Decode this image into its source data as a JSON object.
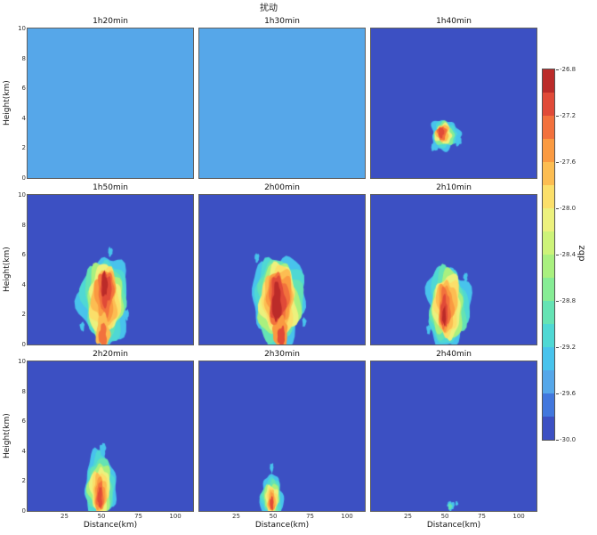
{
  "chart_data": {
    "type": "heatmap",
    "title": "扰动",
    "xlabel": "Distance(km)",
    "ylabel": "Height(km)",
    "xlim": [
      0,
      112
    ],
    "ylim": [
      0,
      10
    ],
    "xticks": [
      25,
      50,
      75,
      100
    ],
    "yticks": [
      0,
      2,
      4,
      6,
      8,
      10
    ],
    "legend_position": "right",
    "grid": false,
    "colorbar": {
      "label": "dbz",
      "vmin": -30.0,
      "vmax": -26.8,
      "tick_labels": [
        "-26.8",
        "-27.2",
        "-27.6",
        "-28.0",
        "-28.4",
        "-28.8",
        "-29.2",
        "-29.6",
        "-30.0"
      ],
      "colors_low_to_high": [
        "#3c50c3",
        "#4277dd",
        "#56a7e9",
        "#48c3ec",
        "#4fd8d4",
        "#65e3b4",
        "#86ec95",
        "#a9f07f",
        "#cdf379",
        "#ecf17d",
        "#fbdf6a",
        "#fcbd52",
        "#fa9a41",
        "#f2713d",
        "#e04a38",
        "#bb2b29"
      ]
    },
    "panels": [
      {
        "title": "1h20min",
        "bg": 2,
        "blobs": []
      },
      {
        "title": "1h30min",
        "bg": 2,
        "blobs": []
      },
      {
        "title": "1h40min",
        "bg": 0,
        "blobs": [
          {
            "c": 3,
            "cx": 50,
            "cy": 2.9,
            "rx": 9.5,
            "ry": 1.0,
            "s": 1
          },
          {
            "c": 4,
            "cx": 50,
            "cy": 2.9,
            "rx": 8.0,
            "ry": 0.85,
            "s": 2
          },
          {
            "c": 6,
            "cx": 49.5,
            "cy": 2.9,
            "rx": 6.8,
            "ry": 0.75,
            "s": 3
          },
          {
            "c": 9,
            "cx": 49,
            "cy": 2.95,
            "rx": 5.6,
            "ry": 0.65,
            "s": 4
          },
          {
            "c": 11,
            "cx": 48.5,
            "cy": 3.0,
            "rx": 4.4,
            "ry": 0.55,
            "s": 5
          },
          {
            "c": 13,
            "cx": 48,
            "cy": 3.0,
            "rx": 3.1,
            "ry": 0.45,
            "s": 6
          },
          {
            "c": 14,
            "cx": 47.5,
            "cy": 3.05,
            "rx": 1.9,
            "ry": 0.35,
            "s": 7
          },
          {
            "c": 3,
            "cx": 59,
            "cy": 2.5,
            "rx": 2.1,
            "ry": 0.35,
            "s": 8
          },
          {
            "c": 3,
            "cx": 43,
            "cy": 2.1,
            "rx": 2.3,
            "ry": 0.3,
            "s": 9
          }
        ]
      },
      {
        "title": "1h50min",
        "bg": 0,
        "blobs": [
          {
            "c": 3,
            "cx": 52,
            "cy": 2.9,
            "rx": 16,
            "ry": 2.9,
            "s": 11
          },
          {
            "c": 4,
            "cx": 52,
            "cy": 2.9,
            "rx": 14.5,
            "ry": 2.65,
            "s": 12
          },
          {
            "c": 5,
            "cx": 52,
            "cy": 2.9,
            "rx": 13.2,
            "ry": 2.45,
            "s": 13
          },
          {
            "c": 7,
            "cx": 52,
            "cy": 2.95,
            "rx": 12,
            "ry": 2.25,
            "s": 14
          },
          {
            "c": 9,
            "cx": 52,
            "cy": 3.0,
            "rx": 10.8,
            "ry": 2.1,
            "s": 15
          },
          {
            "c": 10,
            "cx": 52.5,
            "cy": 3.0,
            "rx": 9.5,
            "ry": 1.95,
            "s": 16
          },
          {
            "c": 11,
            "cx": 52.5,
            "cy": 3.1,
            "rx": 8.2,
            "ry": 1.8,
            "s": 17
          },
          {
            "c": 12,
            "cx": 52.5,
            "cy": 3.3,
            "rx": 6.8,
            "ry": 1.6,
            "s": 18
          },
          {
            "c": 13,
            "cx": 53,
            "cy": 3.5,
            "rx": 5.2,
            "ry": 1.4,
            "s": 19
          },
          {
            "c": 14,
            "cx": 53,
            "cy": 3.7,
            "rx": 3.6,
            "ry": 1.1,
            "s": 20
          },
          {
            "c": 15,
            "cx": 52,
            "cy": 4.0,
            "rx": 2.0,
            "ry": 0.8,
            "s": 21
          },
          {
            "c": 11,
            "cx": 51,
            "cy": 0.9,
            "rx": 4.5,
            "ry": 1.1,
            "s": 22
          },
          {
            "c": 13,
            "cx": 51,
            "cy": 0.6,
            "rx": 2.6,
            "ry": 0.8,
            "s": 23
          },
          {
            "c": 3,
            "cx": 37,
            "cy": 1.2,
            "rx": 1.5,
            "ry": 0.3,
            "s": 24
          },
          {
            "c": 3,
            "cx": 67,
            "cy": 2.0,
            "rx": 1.5,
            "ry": 0.35,
            "s": 25
          },
          {
            "c": 3,
            "cx": 56,
            "cy": 6.2,
            "rx": 1.5,
            "ry": 0.3,
            "s": 26
          }
        ]
      },
      {
        "title": "2h00min",
        "bg": 0,
        "blobs": [
          {
            "c": 3,
            "cx": 54,
            "cy": 2.9,
            "rx": 17.5,
            "ry": 3.0,
            "s": 31
          },
          {
            "c": 4,
            "cx": 54,
            "cy": 2.9,
            "rx": 16,
            "ry": 2.8,
            "s": 32
          },
          {
            "c": 5,
            "cx": 54,
            "cy": 2.9,
            "rx": 14.6,
            "ry": 2.6,
            "s": 33
          },
          {
            "c": 7,
            "cx": 54,
            "cy": 2.9,
            "rx": 13.2,
            "ry": 2.4,
            "s": 34
          },
          {
            "c": 9,
            "cx": 54,
            "cy": 3.0,
            "rx": 12,
            "ry": 2.25,
            "s": 35
          },
          {
            "c": 10,
            "cx": 54,
            "cy": 3.0,
            "rx": 10.8,
            "ry": 2.1,
            "s": 36
          },
          {
            "c": 11,
            "cx": 54,
            "cy": 3.0,
            "rx": 9.6,
            "ry": 2.0,
            "s": 37
          },
          {
            "c": 12,
            "cx": 54,
            "cy": 3.0,
            "rx": 8.2,
            "ry": 1.85,
            "s": 38
          },
          {
            "c": 13,
            "cx": 53.5,
            "cy": 3.0,
            "rx": 6.6,
            "ry": 1.7,
            "s": 39
          },
          {
            "c": 14,
            "cx": 53,
            "cy": 3.0,
            "rx": 5.0,
            "ry": 1.5,
            "s": 40
          },
          {
            "c": 15,
            "cx": 52.5,
            "cy": 2.8,
            "rx": 3.0,
            "ry": 1.3,
            "s": 41
          },
          {
            "c": 12,
            "cx": 55,
            "cy": 0.8,
            "rx": 5.0,
            "ry": 1.0,
            "s": 42
          },
          {
            "c": 14,
            "cx": 55.5,
            "cy": 0.5,
            "rx": 2.5,
            "ry": 0.7,
            "s": 43
          },
          {
            "c": 3,
            "cx": 39,
            "cy": 5.8,
            "rx": 1.5,
            "ry": 0.3,
            "s": 44
          },
          {
            "c": 3,
            "cx": 71,
            "cy": 1.5,
            "rx": 1.3,
            "ry": 0.3,
            "s": 45
          }
        ]
      },
      {
        "title": "2h10min",
        "bg": 0,
        "blobs": [
          {
            "c": 3,
            "cx": 52,
            "cy": 2.6,
            "rx": 14,
            "ry": 2.7,
            "s": 51
          },
          {
            "c": 4,
            "cx": 52,
            "cy": 2.6,
            "rx": 12.8,
            "ry": 2.5,
            "s": 52
          },
          {
            "c": 5,
            "cx": 52,
            "cy": 2.6,
            "rx": 11.6,
            "ry": 2.3,
            "s": 53
          },
          {
            "c": 7,
            "cx": 52,
            "cy": 2.6,
            "rx": 10.4,
            "ry": 2.15,
            "s": 54
          },
          {
            "c": 9,
            "cx": 51.8,
            "cy": 2.6,
            "rx": 9.2,
            "ry": 2.0,
            "s": 55
          },
          {
            "c": 10,
            "cx": 51.5,
            "cy": 2.6,
            "rx": 8.0,
            "ry": 1.85,
            "s": 56
          },
          {
            "c": 11,
            "cx": 51,
            "cy": 2.6,
            "rx": 6.6,
            "ry": 1.7,
            "s": 57
          },
          {
            "c": 12,
            "cx": 50.5,
            "cy": 2.5,
            "rx": 5.0,
            "ry": 1.5,
            "s": 58
          },
          {
            "c": 13,
            "cx": 50,
            "cy": 2.4,
            "rx": 3.6,
            "ry": 1.3,
            "s": 59
          },
          {
            "c": 14,
            "cx": 49.5,
            "cy": 2.2,
            "rx": 2.4,
            "ry": 1.0,
            "s": 60
          },
          {
            "c": 15,
            "cx": 49.5,
            "cy": 1.9,
            "rx": 1.2,
            "ry": 0.6,
            "s": 61
          },
          {
            "c": 3,
            "cx": 64,
            "cy": 4.5,
            "rx": 1.4,
            "ry": 0.3,
            "s": 62
          },
          {
            "c": 3,
            "cx": 39,
            "cy": 1.0,
            "rx": 1.4,
            "ry": 0.3,
            "s": 63
          }
        ]
      },
      {
        "title": "2h20min",
        "bg": 0,
        "blobs": [
          {
            "c": 3,
            "cx": 49,
            "cy": 1.7,
            "rx": 10.5,
            "ry": 2.1,
            "s": 71
          },
          {
            "c": 4,
            "cx": 49,
            "cy": 1.7,
            "rx": 9.4,
            "ry": 1.95,
            "s": 72
          },
          {
            "c": 5,
            "cx": 49,
            "cy": 1.6,
            "rx": 8.4,
            "ry": 1.8,
            "s": 73
          },
          {
            "c": 7,
            "cx": 49,
            "cy": 1.5,
            "rx": 7.4,
            "ry": 1.65,
            "s": 74
          },
          {
            "c": 9,
            "cx": 49,
            "cy": 1.4,
            "rx": 6.4,
            "ry": 1.5,
            "s": 75
          },
          {
            "c": 10,
            "cx": 49,
            "cy": 1.3,
            "rx": 5.4,
            "ry": 1.35,
            "s": 76
          },
          {
            "c": 11,
            "cx": 49,
            "cy": 1.2,
            "rx": 4.4,
            "ry": 1.2,
            "s": 77
          },
          {
            "c": 12,
            "cx": 49,
            "cy": 1.1,
            "rx": 3.4,
            "ry": 1.05,
            "s": 78
          },
          {
            "c": 13,
            "cx": 49,
            "cy": 1.0,
            "rx": 2.4,
            "ry": 0.9,
            "s": 79
          },
          {
            "c": 14,
            "cx": 49,
            "cy": 0.9,
            "rx": 1.5,
            "ry": 0.7,
            "s": 80
          },
          {
            "c": 3,
            "cx": 51,
            "cy": 4.1,
            "rx": 2.0,
            "ry": 0.45,
            "s": 81
          }
        ]
      },
      {
        "title": "2h30min",
        "bg": 0,
        "blobs": [
          {
            "c": 3,
            "cx": 49,
            "cy": 1.0,
            "rx": 7.5,
            "ry": 1.35,
            "s": 91
          },
          {
            "c": 4,
            "cx": 49,
            "cy": 0.95,
            "rx": 6.6,
            "ry": 1.2,
            "s": 92
          },
          {
            "c": 5,
            "cx": 49,
            "cy": 0.9,
            "rx": 5.8,
            "ry": 1.1,
            "s": 93
          },
          {
            "c": 7,
            "cx": 49,
            "cy": 0.85,
            "rx": 5.0,
            "ry": 1.0,
            "s": 94
          },
          {
            "c": 9,
            "cx": 49,
            "cy": 0.8,
            "rx": 4.2,
            "ry": 0.9,
            "s": 95
          },
          {
            "c": 10,
            "cx": 49,
            "cy": 0.75,
            "rx": 3.4,
            "ry": 0.8,
            "s": 96
          },
          {
            "c": 11,
            "cx": 49,
            "cy": 0.7,
            "rx": 2.7,
            "ry": 0.7,
            "s": 97
          },
          {
            "c": 12,
            "cx": 49,
            "cy": 0.6,
            "rx": 2.0,
            "ry": 0.6,
            "s": 98
          },
          {
            "c": 14,
            "cx": 49,
            "cy": 0.5,
            "rx": 1.2,
            "ry": 0.45,
            "s": 99
          },
          {
            "c": 3,
            "cx": 49,
            "cy": 2.9,
            "rx": 1.2,
            "ry": 0.3,
            "s": 100
          }
        ]
      },
      {
        "title": "2h40min",
        "bg": 0,
        "blobs": [
          {
            "c": 3,
            "cx": 54,
            "cy": 0.35,
            "rx": 2.4,
            "ry": 0.3,
            "s": 101
          },
          {
            "c": 5,
            "cx": 53.5,
            "cy": 0.3,
            "rx": 1.3,
            "ry": 0.2,
            "s": 102
          },
          {
            "c": 3,
            "cx": 58,
            "cy": 0.5,
            "rx": 0.9,
            "ry": 0.15,
            "s": 103
          }
        ]
      }
    ]
  }
}
